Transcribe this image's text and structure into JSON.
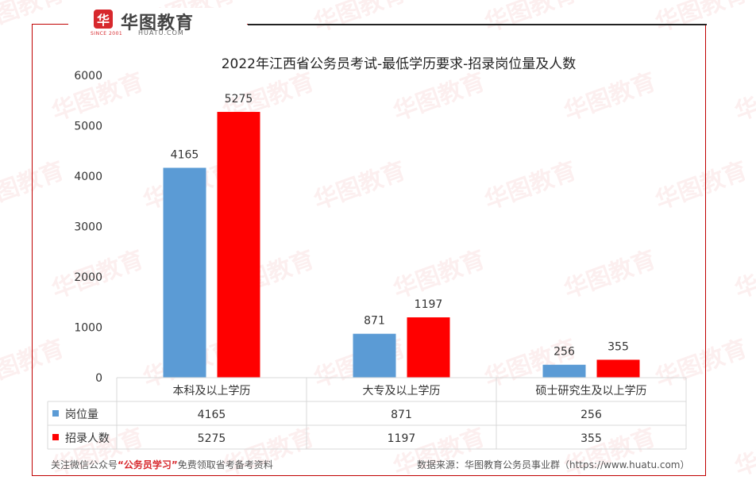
{
  "brand": {
    "logo_glyph": "华",
    "since": "SINCE 2001",
    "name": "华图教育",
    "domain": "HUATU.COM",
    "watermark_text": "华图教育",
    "color": "#d7282d"
  },
  "chart_data": {
    "type": "bar",
    "title": "2022年江西省公务员考试-最低学历要求-招录岗位量及人数",
    "categories": [
      "本科及以上学历",
      "大专及以上学历",
      "硕士研究生及以上学历"
    ],
    "series": [
      {
        "name": "岗位量",
        "values": [
          4165,
          871,
          256
        ],
        "color": "#5b9bd5"
      },
      {
        "name": "招录人数",
        "values": [
          5275,
          1197,
          355
        ],
        "color": "#ff0000"
      }
    ],
    "ylim": [
      0,
      6000
    ],
    "yticks": [
      0,
      1000,
      2000,
      3000,
      4000,
      5000,
      6000
    ],
    "grid": false,
    "legend": "data-table-left"
  },
  "footer": {
    "left_prefix": "关注微信公众号",
    "left_highlight": "“公务员学习”",
    "left_suffix": "免费领取省考备考资料",
    "right": "数据来源：华图教育公务员事业群（https://www.huatu.com）"
  }
}
